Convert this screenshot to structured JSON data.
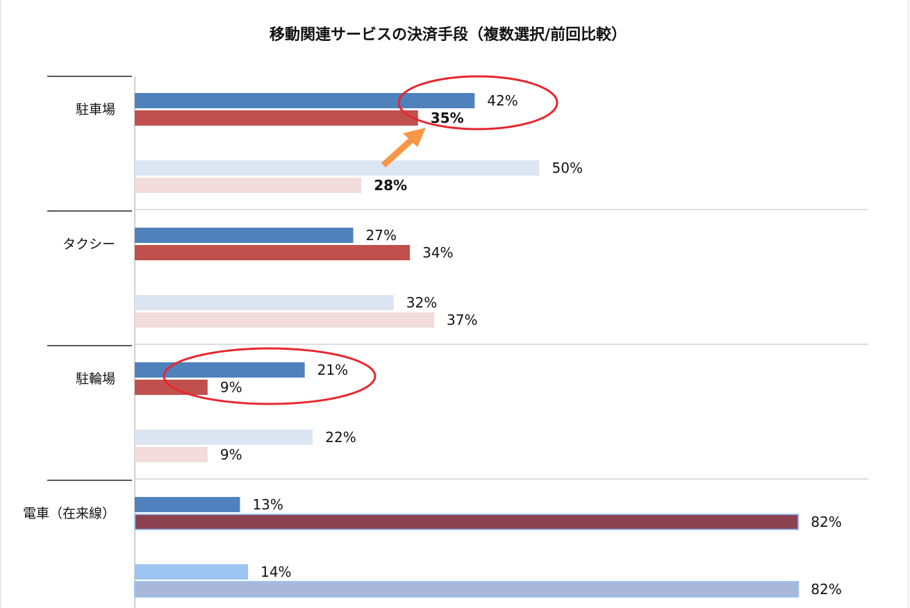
{
  "chart_data": {
    "type": "bar",
    "orientation": "horizontal",
    "title": "移動関連サービスの決済手段（複数選択/前回比較）",
    "categories": [
      "駐車場",
      "タクシー",
      "駐輪場",
      "電車（在来線）"
    ],
    "xlim": [
      0,
      100
    ],
    "grid": false,
    "legend": "none",
    "series": [
      {
        "values": [
          42,
          27,
          21,
          13
        ],
        "color": "#4f81bd"
      },
      {
        "values": [
          35,
          34,
          9,
          82
        ],
        "color": "#c0504d",
        "colors_by_category": [
          "#c0504d",
          "#c0504d",
          "#c0504d",
          "#8b4250"
        ]
      },
      {
        "values": [
          50,
          32,
          22,
          14
        ],
        "color": "#dce6f2",
        "colors_by_category": [
          "#dce6f2",
          "#dce6f2",
          "#dce6f2",
          "#9dc3f0"
        ]
      },
      {
        "values": [
          28,
          37,
          9,
          82
        ],
        "color": "#f2dcdb",
        "colors_by_category": [
          "#f2dcdb",
          "#f2dcdb",
          "#f2dcdb",
          "#a9b7d9"
        ]
      }
    ],
    "value_labels": [
      [
        "42%",
        "27%",
        "21%",
        "13%"
      ],
      [
        "35%",
        "34%",
        "9%",
        "82%"
      ],
      [
        "50%",
        "32%",
        "22%",
        "14%"
      ],
      [
        "28%",
        "37%",
        "9%",
        "82%"
      ]
    ],
    "bold_labels": [
      [
        false,
        false,
        false,
        false
      ],
      [
        true,
        false,
        false,
        false
      ],
      [
        false,
        false,
        false,
        false
      ],
      [
        true,
        false,
        false,
        false
      ]
    ],
    "annotations": [
      {
        "type": "ellipse",
        "color": "#e8262c",
        "target": "駐車場 42% / 35%"
      },
      {
        "type": "arrow",
        "color": "#f79646",
        "target": "駐車場 28% → 35%"
      },
      {
        "type": "ellipse",
        "color": "#e8262c",
        "target": "駐輪場 21% / 9%"
      }
    ]
  }
}
